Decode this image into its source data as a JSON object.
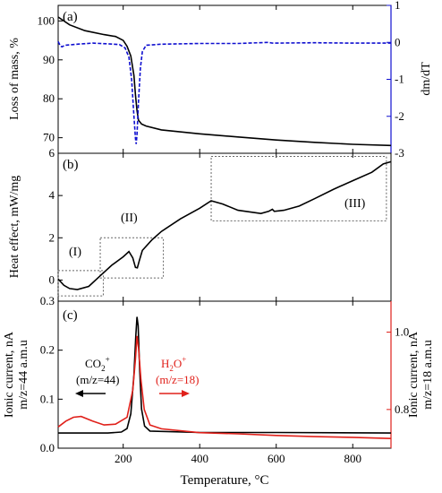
{
  "chart_data": [
    {
      "type": "line",
      "panel_label": "(a)",
      "ylabel": "Loss of mass, %",
      "y2label": "dm/dT",
      "xlim": [
        30,
        900
      ],
      "ylim": [
        66,
        104
      ],
      "y2lim": [
        -3,
        1
      ],
      "xticks": [
        200,
        400,
        600,
        800
      ],
      "yticks": [
        70,
        80,
        90,
        100
      ],
      "y2ticks": [
        -3,
        -2,
        -1,
        0,
        1
      ],
      "y2tick_labels": [
        "-3",
        "-2",
        "-1",
        "0",
        "1"
      ],
      "series": [
        {
          "axis": "left",
          "color": "#000000",
          "style": "solid",
          "points": [
            [
              30,
              101.0
            ],
            [
              60,
              99.0
            ],
            [
              100,
              97.5
            ],
            [
              150,
              96.5
            ],
            [
              180,
              96.0
            ],
            [
              200,
              95.0
            ],
            [
              210,
              93.5
            ],
            [
              220,
              91.0
            ],
            [
              228,
              86.0
            ],
            [
              232,
              81.0
            ],
            [
              236,
              77.0
            ],
            [
              240,
              74.5
            ],
            [
              248,
              73.5
            ],
            [
              260,
              73.0
            ],
            [
              300,
              72.0
            ],
            [
              400,
              71.0
            ],
            [
              500,
              70.2
            ],
            [
              600,
              69.4
            ],
            [
              700,
              68.8
            ],
            [
              800,
              68.3
            ],
            [
              900,
              68.0
            ]
          ]
        },
        {
          "axis": "right",
          "color": "#1010d0",
          "style": "dashed",
          "points": [
            [
              30,
              0.02
            ],
            [
              36,
              -0.1
            ],
            [
              40,
              -0.12
            ],
            [
              48,
              -0.08
            ],
            [
              80,
              -0.05
            ],
            [
              120,
              -0.02
            ],
            [
              160,
              -0.04
            ],
            [
              190,
              -0.06
            ],
            [
              205,
              -0.15
            ],
            [
              215,
              -0.4
            ],
            [
              222,
              -1.0
            ],
            [
              228,
              -2.0
            ],
            [
              232,
              -2.6
            ],
            [
              234,
              -2.75
            ],
            [
              236,
              -2.5
            ],
            [
              240,
              -1.6
            ],
            [
              245,
              -0.7
            ],
            [
              250,
              -0.25
            ],
            [
              260,
              -0.08
            ],
            [
              300,
              -0.05
            ],
            [
              400,
              -0.03
            ],
            [
              500,
              -0.03
            ],
            [
              580,
              0.0
            ],
            [
              590,
              -0.02
            ],
            [
              700,
              -0.01
            ],
            [
              800,
              -0.02
            ],
            [
              900,
              -0.02
            ]
          ]
        }
      ]
    },
    {
      "type": "line",
      "panel_label": "(b)",
      "ylabel": "Heat effect, mW/mg",
      "xlim": [
        30,
        900
      ],
      "ylim": [
        -1,
        6
      ],
      "xticks": [
        200,
        400,
        600,
        800
      ],
      "yticks": [
        0,
        2,
        4,
        6
      ],
      "region_labels": [
        "(I)",
        "(II)",
        "(III)"
      ],
      "series": [
        {
          "color": "#000000",
          "style": "solid",
          "points": [
            [
              30,
              0.05
            ],
            [
              45,
              -0.25
            ],
            [
              60,
              -0.4
            ],
            [
              80,
              -0.45
            ],
            [
              110,
              -0.3
            ],
            [
              140,
              0.2
            ],
            [
              170,
              0.7
            ],
            [
              200,
              1.1
            ],
            [
              215,
              1.35
            ],
            [
              225,
              1.05
            ],
            [
              232,
              0.6
            ],
            [
              237,
              0.58
            ],
            [
              242,
              0.9
            ],
            [
              250,
              1.4
            ],
            [
              275,
              1.9
            ],
            [
              300,
              2.3
            ],
            [
              350,
              2.9
            ],
            [
              400,
              3.4
            ],
            [
              430,
              3.75
            ],
            [
              460,
              3.6
            ],
            [
              500,
              3.3
            ],
            [
              560,
              3.15
            ],
            [
              580,
              3.25
            ],
            [
              590,
              3.35
            ],
            [
              595,
              3.25
            ],
            [
              620,
              3.3
            ],
            [
              660,
              3.5
            ],
            [
              700,
              3.85
            ],
            [
              750,
              4.3
            ],
            [
              800,
              4.7
            ],
            [
              850,
              5.1
            ],
            [
              880,
              5.5
            ],
            [
              900,
              5.6
            ]
          ]
        }
      ],
      "regions": [
        {
          "label": "(I)",
          "x0": 30,
          "x1": 148,
          "y0": -0.75,
          "y1": 0.45
        },
        {
          "label": "(II)",
          "x0": 140,
          "x1": 305,
          "y0": 0.1,
          "y1": 2.0
        },
        {
          "label": "(III)",
          "x0": 430,
          "x1": 888,
          "y0": 2.8,
          "y1": 5.85
        }
      ]
    },
    {
      "type": "line",
      "panel_label": "(c)",
      "xlabel": "Temperature, °C",
      "ylabel": "Ionic current, nA\nm/z=44 a.m.u",
      "y2label": "Ionic current, nA\nm/z=18 a.m.u",
      "xlim": [
        30,
        900
      ],
      "ylim": [
        0,
        0.3
      ],
      "y2lim": [
        0.7,
        1.08
      ],
      "xticks": [
        200,
        400,
        600,
        800
      ],
      "yticks": [
        0.0,
        0.1,
        0.2,
        0.3
      ],
      "ytick_labels": [
        "0.0",
        "0.1",
        "0.2",
        "0.3"
      ],
      "y2ticks": [
        0.8,
        1.0
      ],
      "y2tick_labels": [
        "0.8",
        "1.0"
      ],
      "series": [
        {
          "name": "CO2+ (m/z=44)",
          "axis": "left",
          "color": "#000000",
          "style": "solid",
          "points": [
            [
              30,
              0.031
            ],
            [
              100,
              0.031
            ],
            [
              160,
              0.031
            ],
            [
              195,
              0.033
            ],
            [
              210,
              0.04
            ],
            [
              220,
              0.07
            ],
            [
              228,
              0.15
            ],
            [
              233,
              0.23
            ],
            [
              236,
              0.268
            ],
            [
              239,
              0.25
            ],
            [
              243,
              0.16
            ],
            [
              248,
              0.08
            ],
            [
              256,
              0.045
            ],
            [
              270,
              0.035
            ],
            [
              400,
              0.032
            ],
            [
              600,
              0.032
            ],
            [
              900,
              0.031
            ]
          ]
        },
        {
          "name": "H2O+ (m/z=18)",
          "axis": "right",
          "color": "#e0201a",
          "style": "solid",
          "points": [
            [
              30,
              0.755
            ],
            [
              50,
              0.77
            ],
            [
              70,
              0.78
            ],
            [
              90,
              0.782
            ],
            [
              120,
              0.77
            ],
            [
              150,
              0.76
            ],
            [
              180,
              0.762
            ],
            [
              210,
              0.78
            ],
            [
              225,
              0.85
            ],
            [
              232,
              0.93
            ],
            [
              236,
              0.99
            ],
            [
              240,
              0.96
            ],
            [
              246,
              0.88
            ],
            [
              255,
              0.8
            ],
            [
              270,
              0.76
            ],
            [
              300,
              0.75
            ],
            [
              400,
              0.74
            ],
            [
              500,
              0.737
            ],
            [
              600,
              0.733
            ],
            [
              700,
              0.73
            ],
            [
              800,
              0.728
            ],
            [
              900,
              0.725
            ]
          ]
        }
      ],
      "annotations": [
        {
          "text": "CO",
          "sub": "2",
          "sup": "+"
        },
        {
          "text": "(m/z=44)"
        },
        {
          "text": "H",
          "sub": "2",
          "tail": "O",
          "sup": "+"
        },
        {
          "text": "(m/z=18)"
        }
      ]
    }
  ]
}
